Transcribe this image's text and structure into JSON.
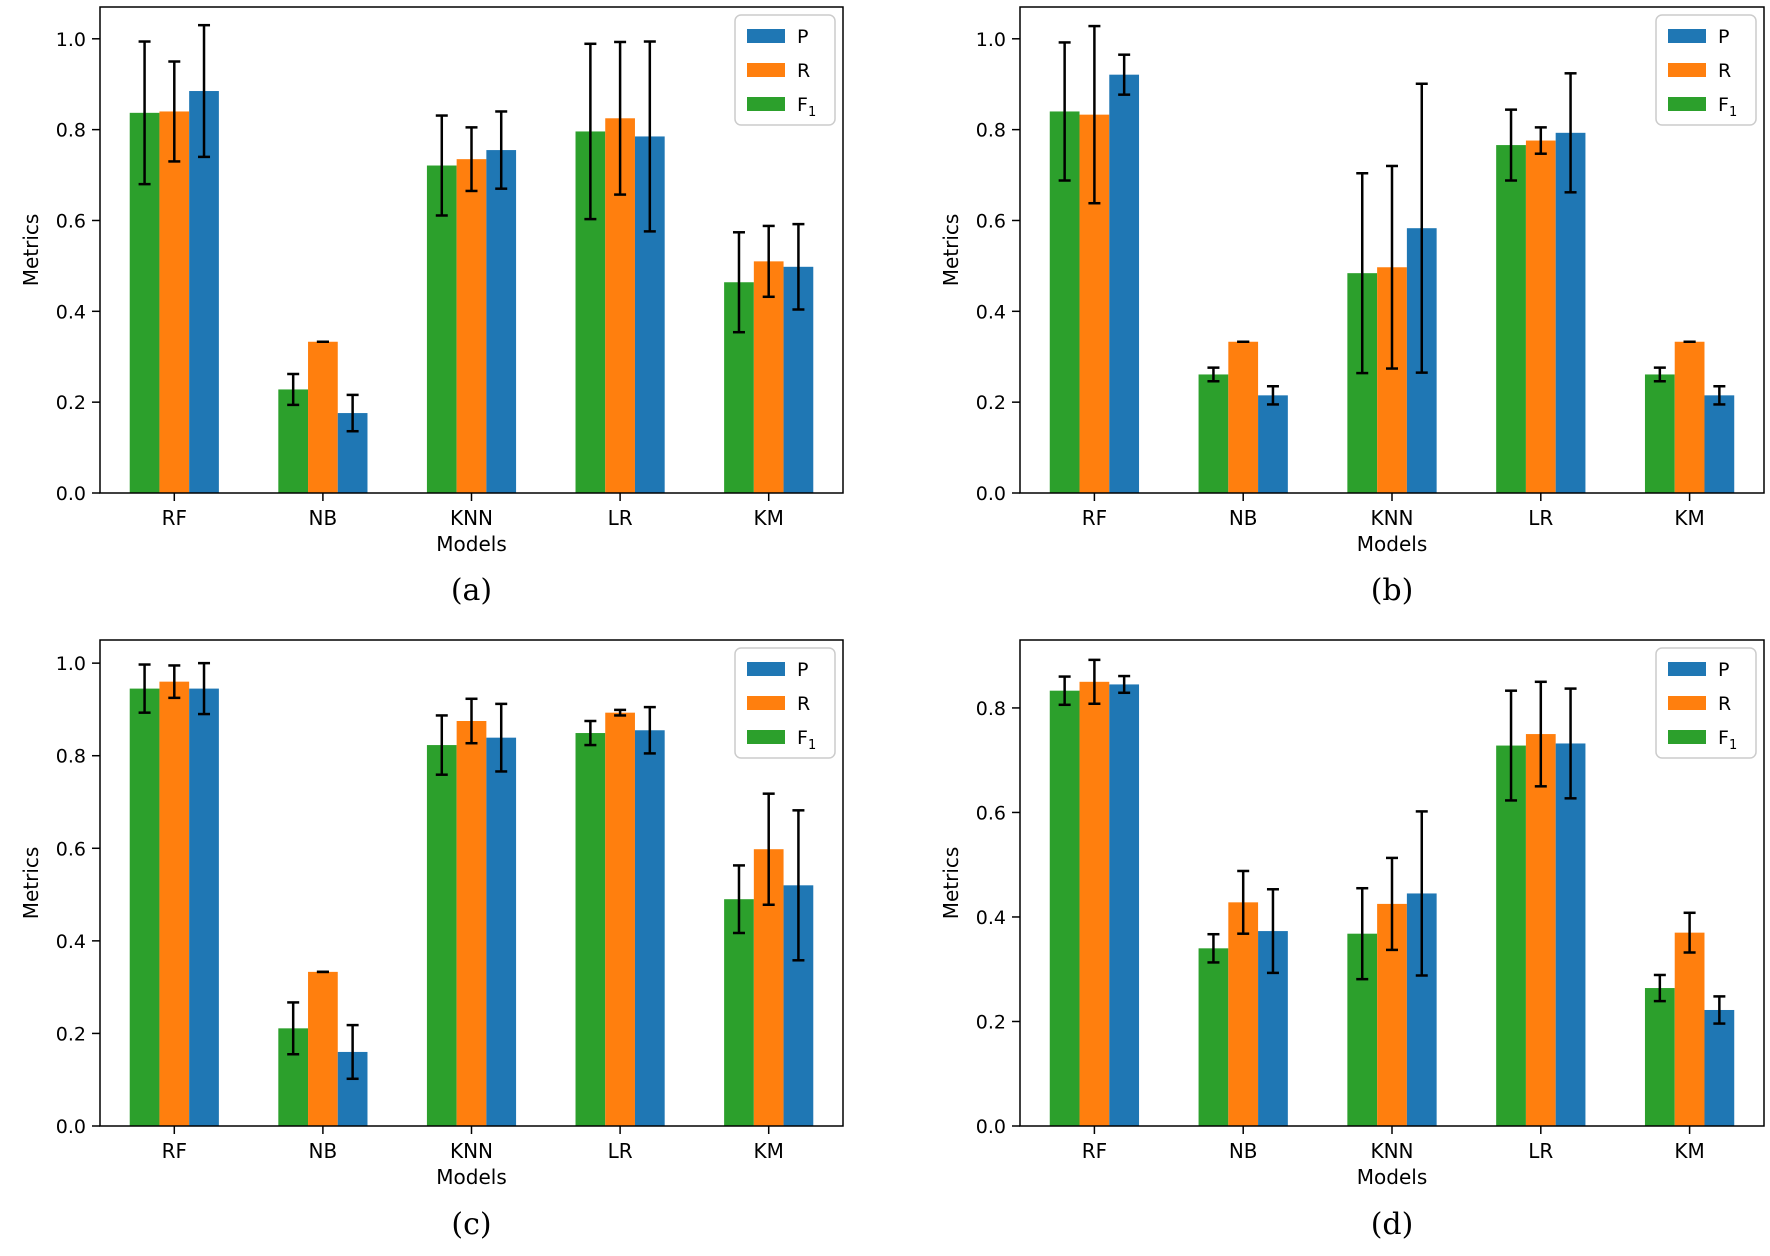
{
  "colors": {
    "P": "#1f77b4",
    "R": "#ff7f0e",
    "F1": "#2ca02c",
    "error_bar": "#000000",
    "axes": "#000000"
  },
  "legend": [
    {
      "key": "P",
      "label": "P"
    },
    {
      "key": "R",
      "label": "R"
    },
    {
      "key": "F1",
      "label": "F",
      "sub": "1"
    }
  ],
  "chart_data": [
    {
      "type": "bar",
      "caption": "(a)",
      "xlabel": "Models",
      "ylabel": "Metrics",
      "categories": [
        "RF",
        "NB",
        "KNN",
        "LR",
        "KM"
      ],
      "ylim": [
        0,
        1.07
      ],
      "yticks": [
        "0.0",
        "0.2",
        "0.4",
        "0.6",
        "0.8",
        "1.0"
      ],
      "legend_position": "top-right",
      "series": [
        {
          "name": "F1",
          "values": [
            0.837,
            0.228,
            0.721,
            0.796,
            0.464
          ],
          "errors": [
            0.157,
            0.034,
            0.11,
            0.193,
            0.11
          ]
        },
        {
          "name": "R",
          "values": [
            0.84,
            0.333,
            0.735,
            0.825,
            0.51
          ],
          "errors": [
            0.11,
            0.0,
            0.07,
            0.168,
            0.078
          ]
        },
        {
          "name": "P",
          "values": [
            0.885,
            0.176,
            0.755,
            0.785,
            0.498
          ],
          "errors": [
            0.145,
            0.04,
            0.085,
            0.209,
            0.094
          ]
        }
      ]
    },
    {
      "type": "bar",
      "caption": "(b)",
      "xlabel": "Models",
      "ylabel": "Metrics",
      "categories": [
        "RF",
        "NB",
        "KNN",
        "LR",
        "KM"
      ],
      "ylim": [
        0,
        1.07
      ],
      "yticks": [
        "0.0",
        "0.2",
        "0.4",
        "0.6",
        "0.8",
        "1.0"
      ],
      "legend_position": "top-right",
      "series": [
        {
          "name": "F1",
          "values": [
            0.84,
            0.261,
            0.484,
            0.766,
            0.261
          ],
          "errors": [
            0.152,
            0.015,
            0.22,
            0.078,
            0.015
          ]
        },
        {
          "name": "R",
          "values": [
            0.833,
            0.333,
            0.497,
            0.776,
            0.333
          ],
          "errors": [
            0.195,
            0.0,
            0.223,
            0.029,
            0.0
          ]
        },
        {
          "name": "P",
          "values": [
            0.921,
            0.215,
            0.583,
            0.793,
            0.215
          ],
          "errors": [
            0.044,
            0.02,
            0.318,
            0.131,
            0.02
          ]
        }
      ]
    },
    {
      "type": "bar",
      "caption": "(c)",
      "xlabel": "Models",
      "ylabel": "Metrics",
      "categories": [
        "RF",
        "NB",
        "KNN",
        "LR",
        "KM"
      ],
      "ylim": [
        0,
        1.05
      ],
      "yticks": [
        "0.0",
        "0.2",
        "0.4",
        "0.6",
        "0.8",
        "1.0"
      ],
      "legend_position": "top-right",
      "series": [
        {
          "name": "F1",
          "values": [
            0.945,
            0.211,
            0.823,
            0.849,
            0.49
          ],
          "errors": [
            0.052,
            0.056,
            0.064,
            0.026,
            0.073
          ]
        },
        {
          "name": "R",
          "values": [
            0.96,
            0.333,
            0.875,
            0.893,
            0.598
          ],
          "errors": [
            0.035,
            0.0,
            0.048,
            0.006,
            0.12
          ]
        },
        {
          "name": "P",
          "values": [
            0.945,
            0.16,
            0.839,
            0.855,
            0.52
          ],
          "errors": [
            0.055,
            0.058,
            0.073,
            0.05,
            0.162
          ]
        }
      ]
    },
    {
      "type": "bar",
      "caption": "(d)",
      "xlabel": "Models",
      "ylabel": "Metrics",
      "categories": [
        "RF",
        "NB",
        "KNN",
        "LR",
        "KM"
      ],
      "ylim": [
        0,
        0.93
      ],
      "yticks": [
        "0.0",
        "0.2",
        "0.4",
        "0.6",
        "0.8"
      ],
      "legend_position": "top-right",
      "series": [
        {
          "name": "F1",
          "values": [
            0.833,
            0.34,
            0.368,
            0.728,
            0.264
          ],
          "errors": [
            0.027,
            0.027,
            0.087,
            0.105,
            0.025
          ]
        },
        {
          "name": "R",
          "values": [
            0.85,
            0.428,
            0.425,
            0.75,
            0.37
          ],
          "errors": [
            0.042,
            0.06,
            0.088,
            0.1,
            0.038
          ]
        },
        {
          "name": "P",
          "values": [
            0.845,
            0.373,
            0.445,
            0.732,
            0.222
          ],
          "errors": [
            0.016,
            0.08,
            0.157,
            0.105,
            0.026
          ]
        }
      ]
    }
  ]
}
